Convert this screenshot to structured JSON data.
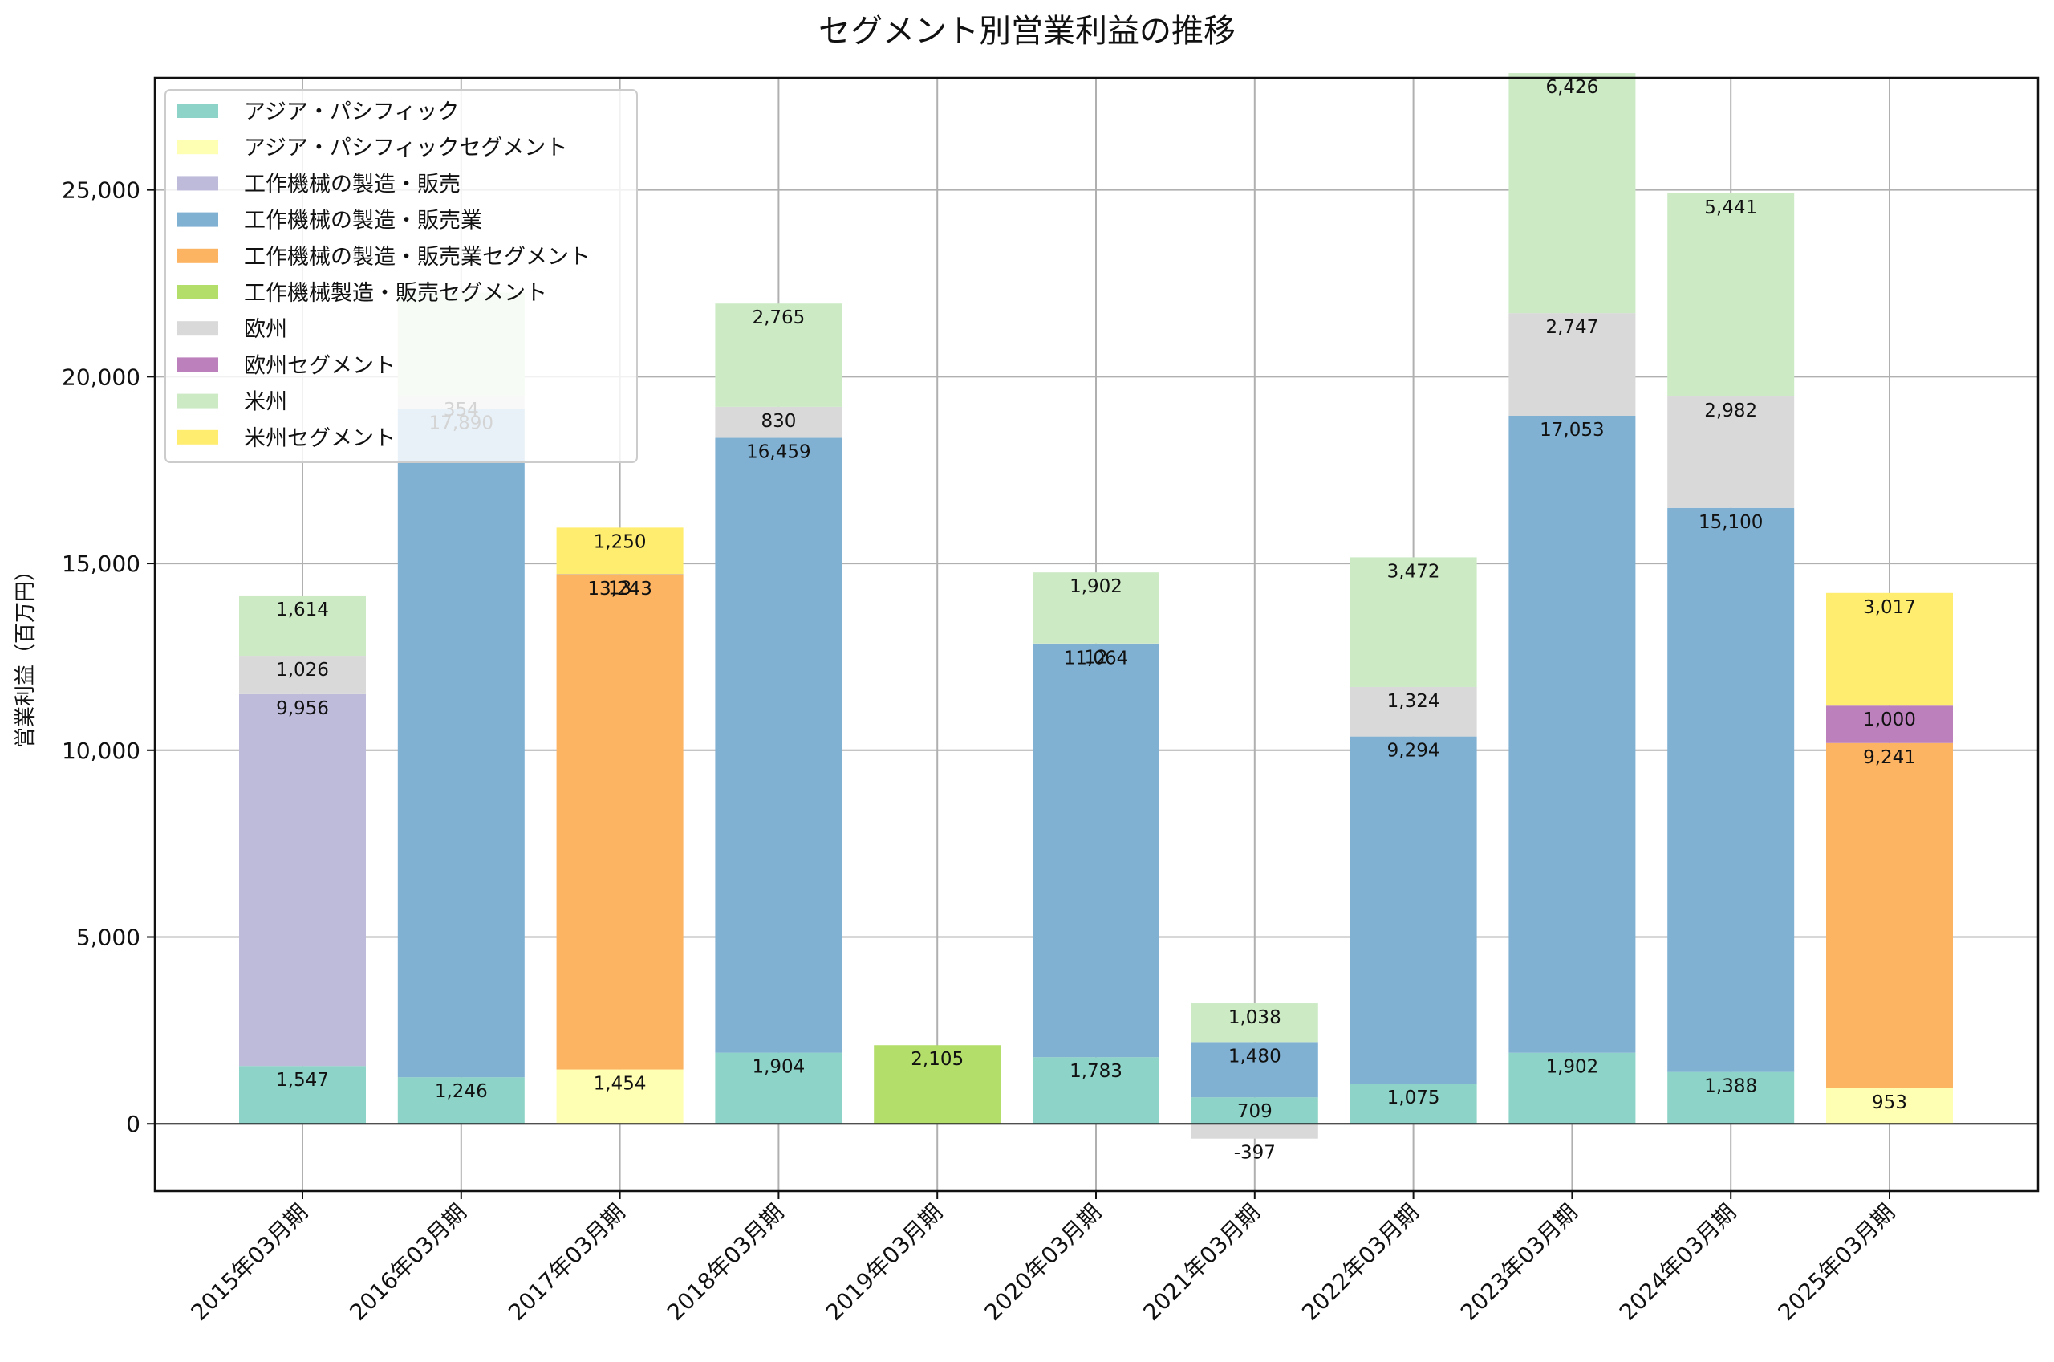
{
  "chart_data": {
    "type": "bar",
    "stacked": true,
    "title": "セグメント別営業利益の推移",
    "xlabel": "",
    "ylabel": "営業利益（百万円）",
    "ylim": [
      -1800,
      28000
    ],
    "yticks": [
      0,
      5000,
      10000,
      15000,
      20000,
      25000
    ],
    "ytick_labels": [
      "0",
      "5,000",
      "10,000",
      "15,000",
      "20,000",
      "25,000"
    ],
    "grid": true,
    "legend_position": "top-left",
    "categories": [
      "2015年03月期",
      "2016年03月期",
      "2017年03月期",
      "2018年03月期",
      "2019年03月期",
      "2020年03月期",
      "2021年03月期",
      "2022年03月期",
      "2023年03月期",
      "2024年03月期",
      "2025年03月期"
    ],
    "series": [
      {
        "name": "アジア・パシフィック",
        "color": "#8dd3c7",
        "values": [
          1547,
          1246,
          null,
          1904,
          null,
          1783,
          709,
          1075,
          1902,
          1388,
          null
        ]
      },
      {
        "name": "アジア・パシフィックセグメント",
        "color": "#ffffb3",
        "values": [
          null,
          null,
          1454,
          null,
          null,
          null,
          null,
          null,
          null,
          null,
          953
        ]
      },
      {
        "name": "工作機械の製造・販売",
        "color": "#bebada",
        "values": [
          9956,
          null,
          null,
          null,
          null,
          null,
          null,
          null,
          null,
          null,
          null
        ]
      },
      {
        "name": "工作機械の製造・販売業",
        "color": "#80b1d3",
        "values": [
          null,
          17890,
          null,
          16459,
          null,
          11064,
          1480,
          9294,
          17053,
          15100,
          null
        ]
      },
      {
        "name": "工作機械の製造・販売業セグメント",
        "color": "#fdb462",
        "values": [
          null,
          null,
          13243,
          null,
          null,
          null,
          null,
          null,
          null,
          null,
          9241
        ]
      },
      {
        "name": "工作機械製造・販売セグメント",
        "color": "#b3de69",
        "values": [
          null,
          null,
          null,
          null,
          2105,
          null,
          null,
          null,
          null,
          null,
          null
        ]
      },
      {
        "name": "欧州",
        "color": "#d9d9d9",
        "values": [
          1026,
          354,
          null,
          830,
          null,
          12,
          -397,
          1324,
          2747,
          2982,
          null
        ]
      },
      {
        "name": "欧州セグメント",
        "color": "#bc80bd",
        "values": [
          null,
          null,
          13,
          null,
          null,
          null,
          null,
          null,
          null,
          null,
          1000
        ]
      },
      {
        "name": "米州",
        "color": "#ccebc5",
        "values": [
          1614,
          2765,
          null,
          2765,
          null,
          1902,
          1038,
          3472,
          6426,
          5441,
          null
        ]
      },
      {
        "name": "米州セグメント",
        "color": "#ffed6f",
        "values": [
          null,
          null,
          1250,
          null,
          null,
          null,
          null,
          null,
          null,
          null,
          3017
        ]
      }
    ],
    "data_labels": [
      [
        "1,547",
        "",
        "9,956",
        "",
        "",
        "",
        "1,026",
        "",
        "1,614",
        ""
      ],
      [
        "1,246",
        "",
        "",
        "17,890",
        "",
        "",
        "354",
        "",
        "",
        ""
      ],
      [
        "",
        "1,454",
        "",
        "",
        "13,243",
        "",
        "",
        "13",
        "",
        "1,250"
      ],
      [
        "1,904",
        "",
        "",
        "16,459",
        "",
        "",
        "830",
        "",
        "2,765",
        ""
      ],
      [
        "",
        "",
        "",
        "",
        "",
        "2,105",
        "",
        "",
        "",
        ""
      ],
      [
        "1,783",
        "",
        "",
        "11,064",
        "",
        "",
        "12",
        "",
        "1,902",
        ""
      ],
      [
        "709",
        "",
        "",
        "1,480",
        "",
        "",
        "-397",
        "",
        "1,038",
        ""
      ],
      [
        "1,075",
        "",
        "",
        "9,294",
        "",
        "",
        "1,324",
        "",
        "3,472",
        ""
      ],
      [
        "1,902",
        "",
        "",
        "17,053",
        "",
        "",
        "2,747",
        "",
        "6,426",
        ""
      ],
      [
        "1,388",
        "",
        "",
        "15,100",
        "",
        "",
        "2,982",
        "",
        "5,441",
        ""
      ],
      [
        "",
        "953",
        "",
        "",
        "9,241",
        "",
        "",
        "1,000",
        "",
        "3,017"
      ]
    ]
  }
}
